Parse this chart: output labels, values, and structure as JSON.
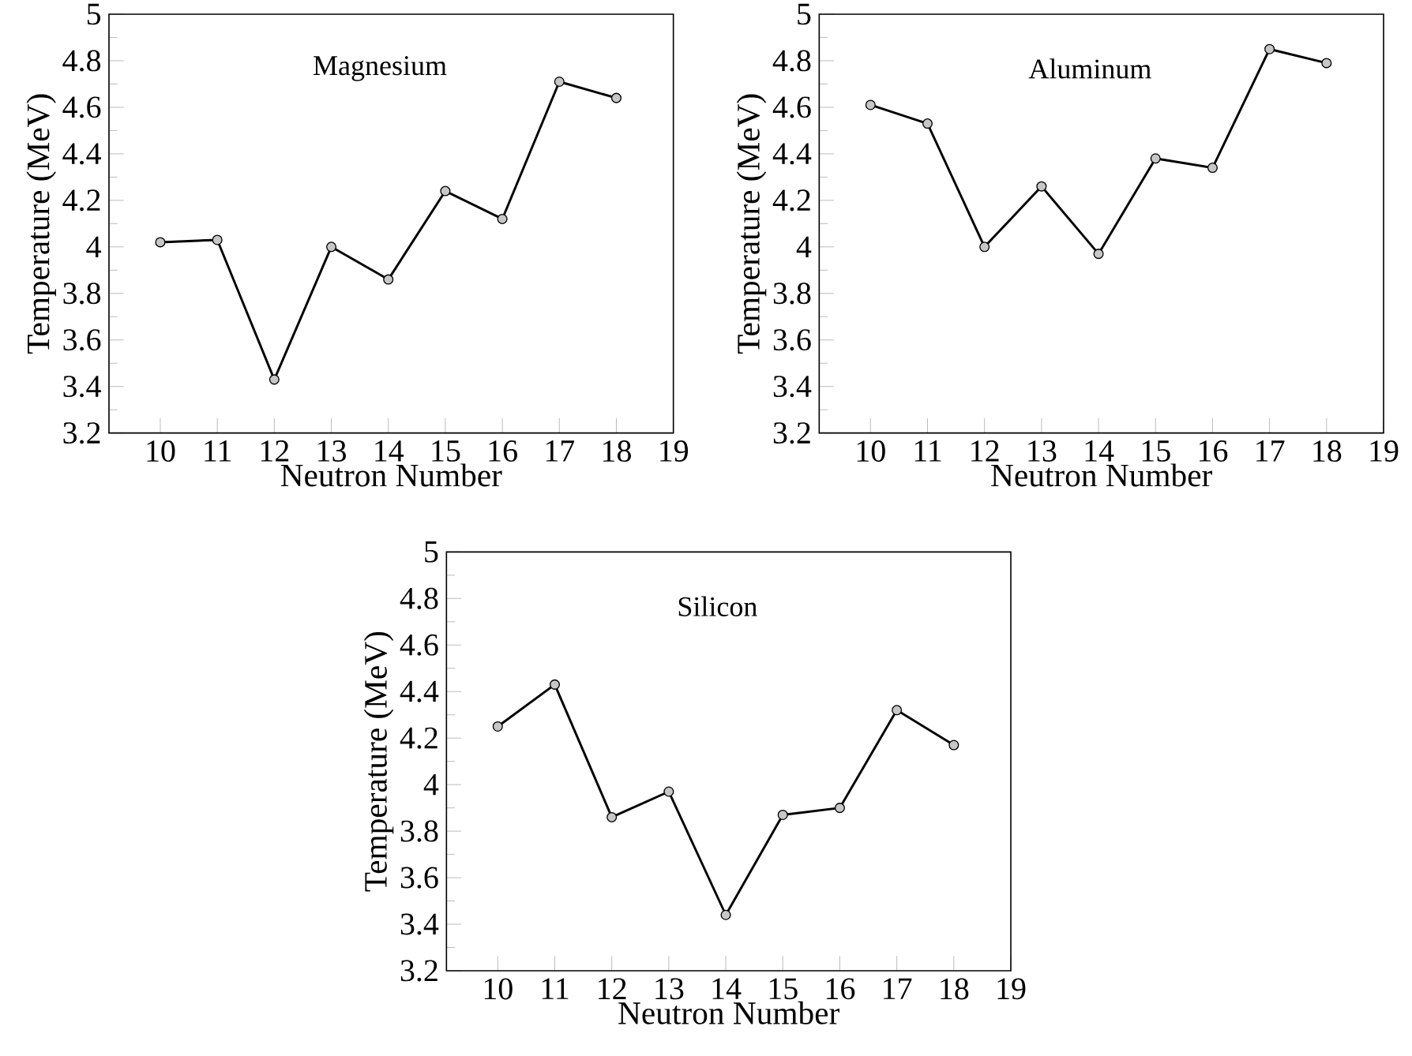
{
  "chart_data": [
    {
      "type": "line",
      "title": "Magnesium",
      "xlabel": "Neutron Number",
      "ylabel": "Temperature (MeV)",
      "marker": "circle",
      "line_style": "solid",
      "xlim": [
        9.1,
        19
      ],
      "xticks": [
        10,
        11,
        12,
        13,
        14,
        15,
        16,
        17,
        18,
        19
      ],
      "ylim": [
        3.2,
        5
      ],
      "yticks": [
        3.2,
        3.4,
        3.6,
        3.8,
        4,
        4.2,
        4.4,
        4.6,
        4.8,
        5
      ],
      "series": [
        {
          "color": "#000000",
          "x": [
            10,
            11,
            12,
            13,
            14,
            15,
            16,
            17,
            18
          ],
          "values": [
            4.02,
            4.03,
            3.43,
            4.0,
            3.86,
            4.24,
            4.12,
            4.71,
            4.64
          ]
        }
      ]
    },
    {
      "type": "line",
      "title": "Aluminum",
      "xlabel": "Neutron Number",
      "ylabel": "Temperature (MeV)",
      "marker": "circle",
      "line_style": "solid",
      "xlim": [
        9.1,
        19
      ],
      "xticks": [
        10,
        11,
        12,
        13,
        14,
        15,
        16,
        17,
        18,
        19
      ],
      "ylim": [
        3.2,
        5
      ],
      "yticks": [
        3.2,
        3.4,
        3.6,
        3.8,
        4,
        4.2,
        4.4,
        4.6,
        4.8,
        5
      ],
      "series": [
        {
          "color": "#000000",
          "x": [
            10,
            11,
            12,
            13,
            14,
            15,
            16,
            17,
            18
          ],
          "values": [
            4.61,
            4.53,
            4.0,
            4.26,
            3.97,
            4.38,
            4.34,
            4.85,
            4.79
          ]
        }
      ]
    },
    {
      "type": "line",
      "title": "Silicon",
      "xlabel": "Neutron Number",
      "ylabel": "Temperature (MeV)",
      "marker": "circle",
      "line_style": "solid",
      "xlim": [
        9.1,
        19
      ],
      "xticks": [
        10,
        11,
        12,
        13,
        14,
        15,
        16,
        17,
        18,
        19
      ],
      "ylim": [
        3.2,
        5
      ],
      "yticks": [
        3.2,
        3.4,
        3.6,
        3.8,
        4,
        4.2,
        4.4,
        4.6,
        4.8,
        5
      ],
      "series": [
        {
          "color": "#000000",
          "x": [
            10,
            11,
            12,
            13,
            14,
            15,
            16,
            17,
            18
          ],
          "values": [
            4.25,
            4.43,
            3.86,
            3.97,
            3.44,
            3.87,
            3.9,
            4.32,
            4.17
          ]
        }
      ]
    }
  ]
}
